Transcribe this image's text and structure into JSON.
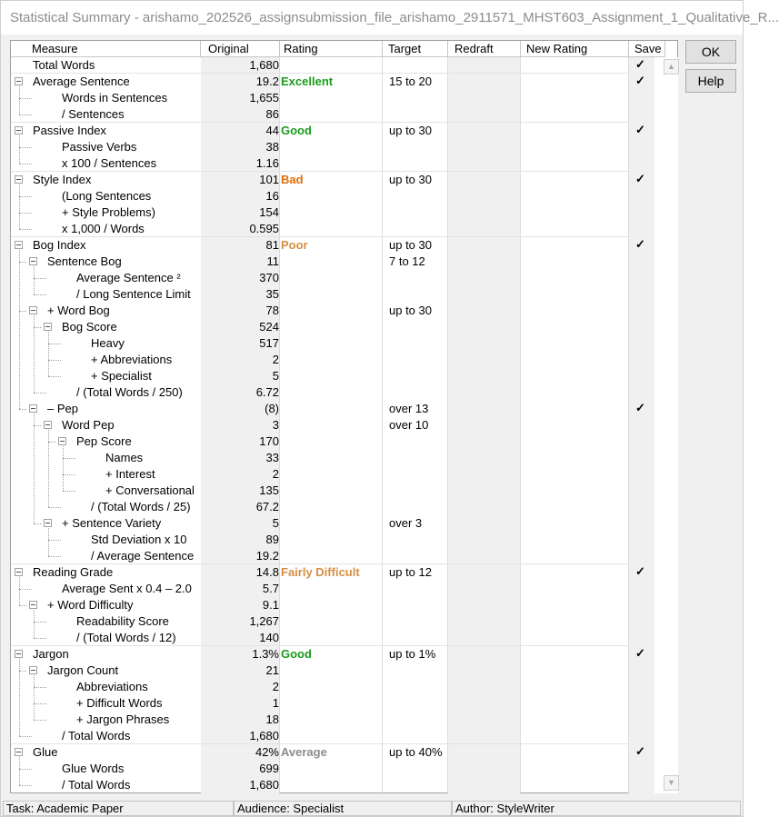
{
  "window": {
    "title": "Statistical Summary - arishamo_202526_assignsubmission_file_arishamo_2911571_MHST603_Assignment_1_Qualitative_R..."
  },
  "headers": {
    "measure": "Measure",
    "original": "Original",
    "rating": "Rating",
    "target": "Target",
    "redraft": "Redraft",
    "new_rating": "New Rating",
    "save": "Save"
  },
  "buttons": {
    "ok": "OK",
    "help": "Help"
  },
  "checkmark": "✓",
  "colors": {
    "excellent": "#1a9c1a",
    "good": "#1a9c1a",
    "bad": "#e36c0a",
    "poor": "#d68f45",
    "fairly_difficult": "#d68f45",
    "average": "#8c8c8c"
  },
  "rows": [
    {
      "label": "Total Words",
      "original": "1,680",
      "rating": "",
      "target": "",
      "save": true
    },
    {
      "label": "Average Sentence",
      "original": "19.2",
      "rating": "Excellent",
      "rating_color": "#1a9c1a",
      "target": "15 to 20",
      "save": true
    },
    {
      "label": "Words in Sentences",
      "original": "1,655",
      "rating": "",
      "target": "",
      "save": false
    },
    {
      "label": "/ Sentences",
      "original": "86",
      "rating": "",
      "target": "",
      "save": false
    },
    {
      "label": "Passive Index",
      "original": "44",
      "rating": "Good",
      "rating_color": "#1a9c1a",
      "target": "up to 30",
      "save": true
    },
    {
      "label": "Passive Verbs",
      "original": "38",
      "rating": "",
      "target": "",
      "save": false
    },
    {
      "label": "x 100 / Sentences",
      "original": "1.16",
      "rating": "",
      "target": "",
      "save": false
    },
    {
      "label": "Style Index",
      "original": "101",
      "rating": "Bad",
      "rating_color": "#e36c0a",
      "target": "up to 30",
      "save": true
    },
    {
      "label": "(Long Sentences",
      "original": "16",
      "rating": "",
      "target": "",
      "save": false
    },
    {
      "label": "+ Style Problems)",
      "original": "154",
      "rating": "",
      "target": "",
      "save": false
    },
    {
      "label": "x 1,000 / Words",
      "original": "0.595",
      "rating": "",
      "target": "",
      "save": false
    },
    {
      "label": "Bog Index",
      "original": "81",
      "rating": "Poor",
      "rating_color": "#d68f45",
      "target": "up to 30",
      "save": true
    },
    {
      "label": "Sentence Bog",
      "original": "11",
      "rating": "",
      "target": "7 to 12",
      "save": false
    },
    {
      "label": "Average Sentence ²",
      "original": "370",
      "rating": "",
      "target": "",
      "save": false
    },
    {
      "label": "/ Long Sentence Limit",
      "original": "35",
      "rating": "",
      "target": "",
      "save": false
    },
    {
      "label": "+ Word Bog",
      "original": "78",
      "rating": "",
      "target": "up to 30",
      "save": false
    },
    {
      "label": "Bog Score",
      "original": "524",
      "rating": "",
      "target": "",
      "save": false
    },
    {
      "label": "Heavy",
      "original": "517",
      "rating": "",
      "target": "",
      "save": false
    },
    {
      "label": "+ Abbreviations",
      "original": "2",
      "rating": "",
      "target": "",
      "save": false
    },
    {
      "label": "+ Specialist",
      "original": "5",
      "rating": "",
      "target": "",
      "save": false
    },
    {
      "label": "/ (Total Words / 250)",
      "original": "6.72",
      "rating": "",
      "target": "",
      "save": false
    },
    {
      "label": "– Pep",
      "original": "(8)",
      "rating": "",
      "target": "over 13",
      "save": true
    },
    {
      "label": "Word Pep",
      "original": "3",
      "rating": "",
      "target": "over 10",
      "save": false
    },
    {
      "label": "Pep Score",
      "original": "170",
      "rating": "",
      "target": "",
      "save": false
    },
    {
      "label": "Names",
      "original": "33",
      "rating": "",
      "target": "",
      "save": false
    },
    {
      "label": "+ Interest",
      "original": "2",
      "rating": "",
      "target": "",
      "save": false
    },
    {
      "label": "+ Conversational",
      "original": "135",
      "rating": "",
      "target": "",
      "save": false
    },
    {
      "label": "/ (Total Words / 25)",
      "original": "67.2",
      "rating": "",
      "target": "",
      "save": false
    },
    {
      "label": "+ Sentence Variety",
      "original": "5",
      "rating": "",
      "target": "over  3",
      "save": false
    },
    {
      "label": "Std Deviation x 10",
      "original": "89",
      "rating": "",
      "target": "",
      "save": false
    },
    {
      "label": "/ Average Sentence",
      "original": "19.2",
      "rating": "",
      "target": "",
      "save": false
    },
    {
      "label": "Reading Grade",
      "original": "14.8",
      "rating": "Fairly Difficult",
      "rating_color": "#d68f45",
      "target": "up to 12",
      "save": true
    },
    {
      "label": "Average Sent x 0.4 – 2.0",
      "original": "5.7",
      "rating": "",
      "target": "",
      "save": false
    },
    {
      "label": "+ Word Difficulty",
      "original": "9.1",
      "rating": "",
      "target": "",
      "save": false
    },
    {
      "label": "Readability Score",
      "original": "1,267",
      "rating": "",
      "target": "",
      "save": false
    },
    {
      "label": "/ (Total Words / 12)",
      "original": "140",
      "rating": "",
      "target": "",
      "save": false
    },
    {
      "label": "Jargon",
      "original": "1.3%",
      "rating": "Good",
      "rating_color": "#1a9c1a",
      "target": "up to   1%",
      "save": true
    },
    {
      "label": "Jargon Count",
      "original": "21",
      "rating": "",
      "target": "",
      "save": false
    },
    {
      "label": "Abbreviations",
      "original": "2",
      "rating": "",
      "target": "",
      "save": false
    },
    {
      "label": "+ Difficult Words",
      "original": "1",
      "rating": "",
      "target": "",
      "save": false
    },
    {
      "label": "+ Jargon Phrases",
      "original": "18",
      "rating": "",
      "target": "",
      "save": false
    },
    {
      "label": "/ Total Words",
      "original": "1,680",
      "rating": "",
      "target": "",
      "save": false
    },
    {
      "label": "Glue",
      "original": "42%",
      "rating": "Average",
      "rating_color": "#8c8c8c",
      "target": "up to 40%",
      "save": true
    },
    {
      "label": "Glue Words",
      "original": "699",
      "rating": "",
      "target": "",
      "save": false
    },
    {
      "label": "/ Total Words",
      "original": "1,680",
      "rating": "",
      "target": "",
      "save": false
    }
  ],
  "status": {
    "task": "Task: Academic Paper",
    "audience": "Audience: Specialist",
    "author": "Author: StyleWriter"
  }
}
